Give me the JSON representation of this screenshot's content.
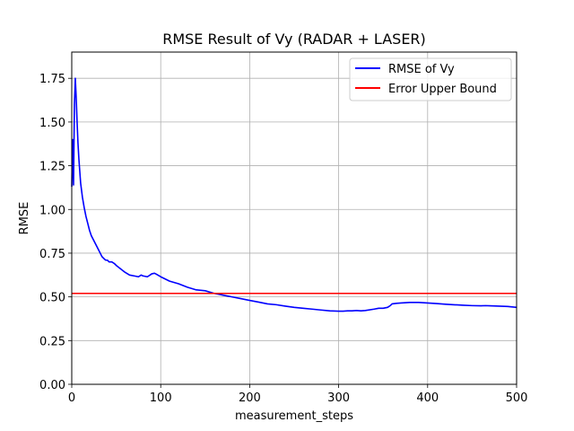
{
  "chart_data": {
    "type": "line",
    "title": "RMSE Result of Vy (RADAR + LASER)",
    "xlabel": "measurement_steps",
    "ylabel": "RMSE",
    "xlim": [
      0,
      500
    ],
    "ylim": [
      0,
      1.9
    ],
    "xticks": [
      0,
      100,
      200,
      300,
      400,
      500
    ],
    "xtick_labels": [
      "0",
      "100",
      "200",
      "300",
      "400",
      "500"
    ],
    "yticks": [
      0,
      0.25,
      0.5,
      0.75,
      1.0,
      1.25,
      1.5,
      1.75
    ],
    "ytick_labels": [
      "0.00",
      "0.25",
      "0.50",
      "0.75",
      "1.00",
      "1.25",
      "1.50",
      "1.75"
    ],
    "grid": true,
    "legend_position": "top-right",
    "series": [
      {
        "name": "RMSE of Vy",
        "color": "#0000ff",
        "x": [
          0,
          1,
          2,
          3,
          4,
          5,
          6,
          7,
          8,
          9,
          10,
          12,
          14,
          16,
          18,
          20,
          22,
          24,
          26,
          28,
          30,
          32,
          34,
          36,
          38,
          40,
          42,
          45,
          48,
          50,
          55,
          60,
          65,
          70,
          75,
          78,
          80,
          85,
          88,
          90,
          93,
          95,
          100,
          110,
          120,
          130,
          140,
          150,
          160,
          170,
          180,
          190,
          200,
          210,
          220,
          230,
          240,
          250,
          260,
          270,
          280,
          290,
          300,
          305,
          310,
          315,
          320,
          325,
          330,
          340,
          345,
          350,
          355,
          358,
          360,
          365,
          370,
          380,
          390,
          400,
          410,
          420,
          430,
          440,
          450,
          460,
          465,
          470,
          480,
          490,
          500
        ],
        "y": [
          1.13,
          1.4,
          1.14,
          1.6,
          1.75,
          1.64,
          1.5,
          1.38,
          1.29,
          1.22,
          1.15,
          1.07,
          1.01,
          0.96,
          0.92,
          0.88,
          0.85,
          0.83,
          0.81,
          0.79,
          0.77,
          0.75,
          0.73,
          0.72,
          0.71,
          0.71,
          0.7,
          0.7,
          0.69,
          0.68,
          0.66,
          0.64,
          0.625,
          0.62,
          0.615,
          0.625,
          0.62,
          0.615,
          0.625,
          0.632,
          0.635,
          0.63,
          0.615,
          0.59,
          0.575,
          0.555,
          0.54,
          0.535,
          0.52,
          0.51,
          0.5,
          0.49,
          0.48,
          0.47,
          0.46,
          0.455,
          0.447,
          0.44,
          0.435,
          0.43,
          0.425,
          0.42,
          0.418,
          0.418,
          0.42,
          0.42,
          0.422,
          0.42,
          0.422,
          0.43,
          0.435,
          0.435,
          0.44,
          0.45,
          0.46,
          0.463,
          0.465,
          0.468,
          0.468,
          0.465,
          0.462,
          0.458,
          0.455,
          0.452,
          0.45,
          0.449,
          0.45,
          0.449,
          0.447,
          0.445,
          0.44
        ]
      },
      {
        "name": "Error Upper Bound",
        "color": "#ff0000",
        "x": [
          0,
          500
        ],
        "y": [
          0.52,
          0.52
        ]
      }
    ]
  }
}
